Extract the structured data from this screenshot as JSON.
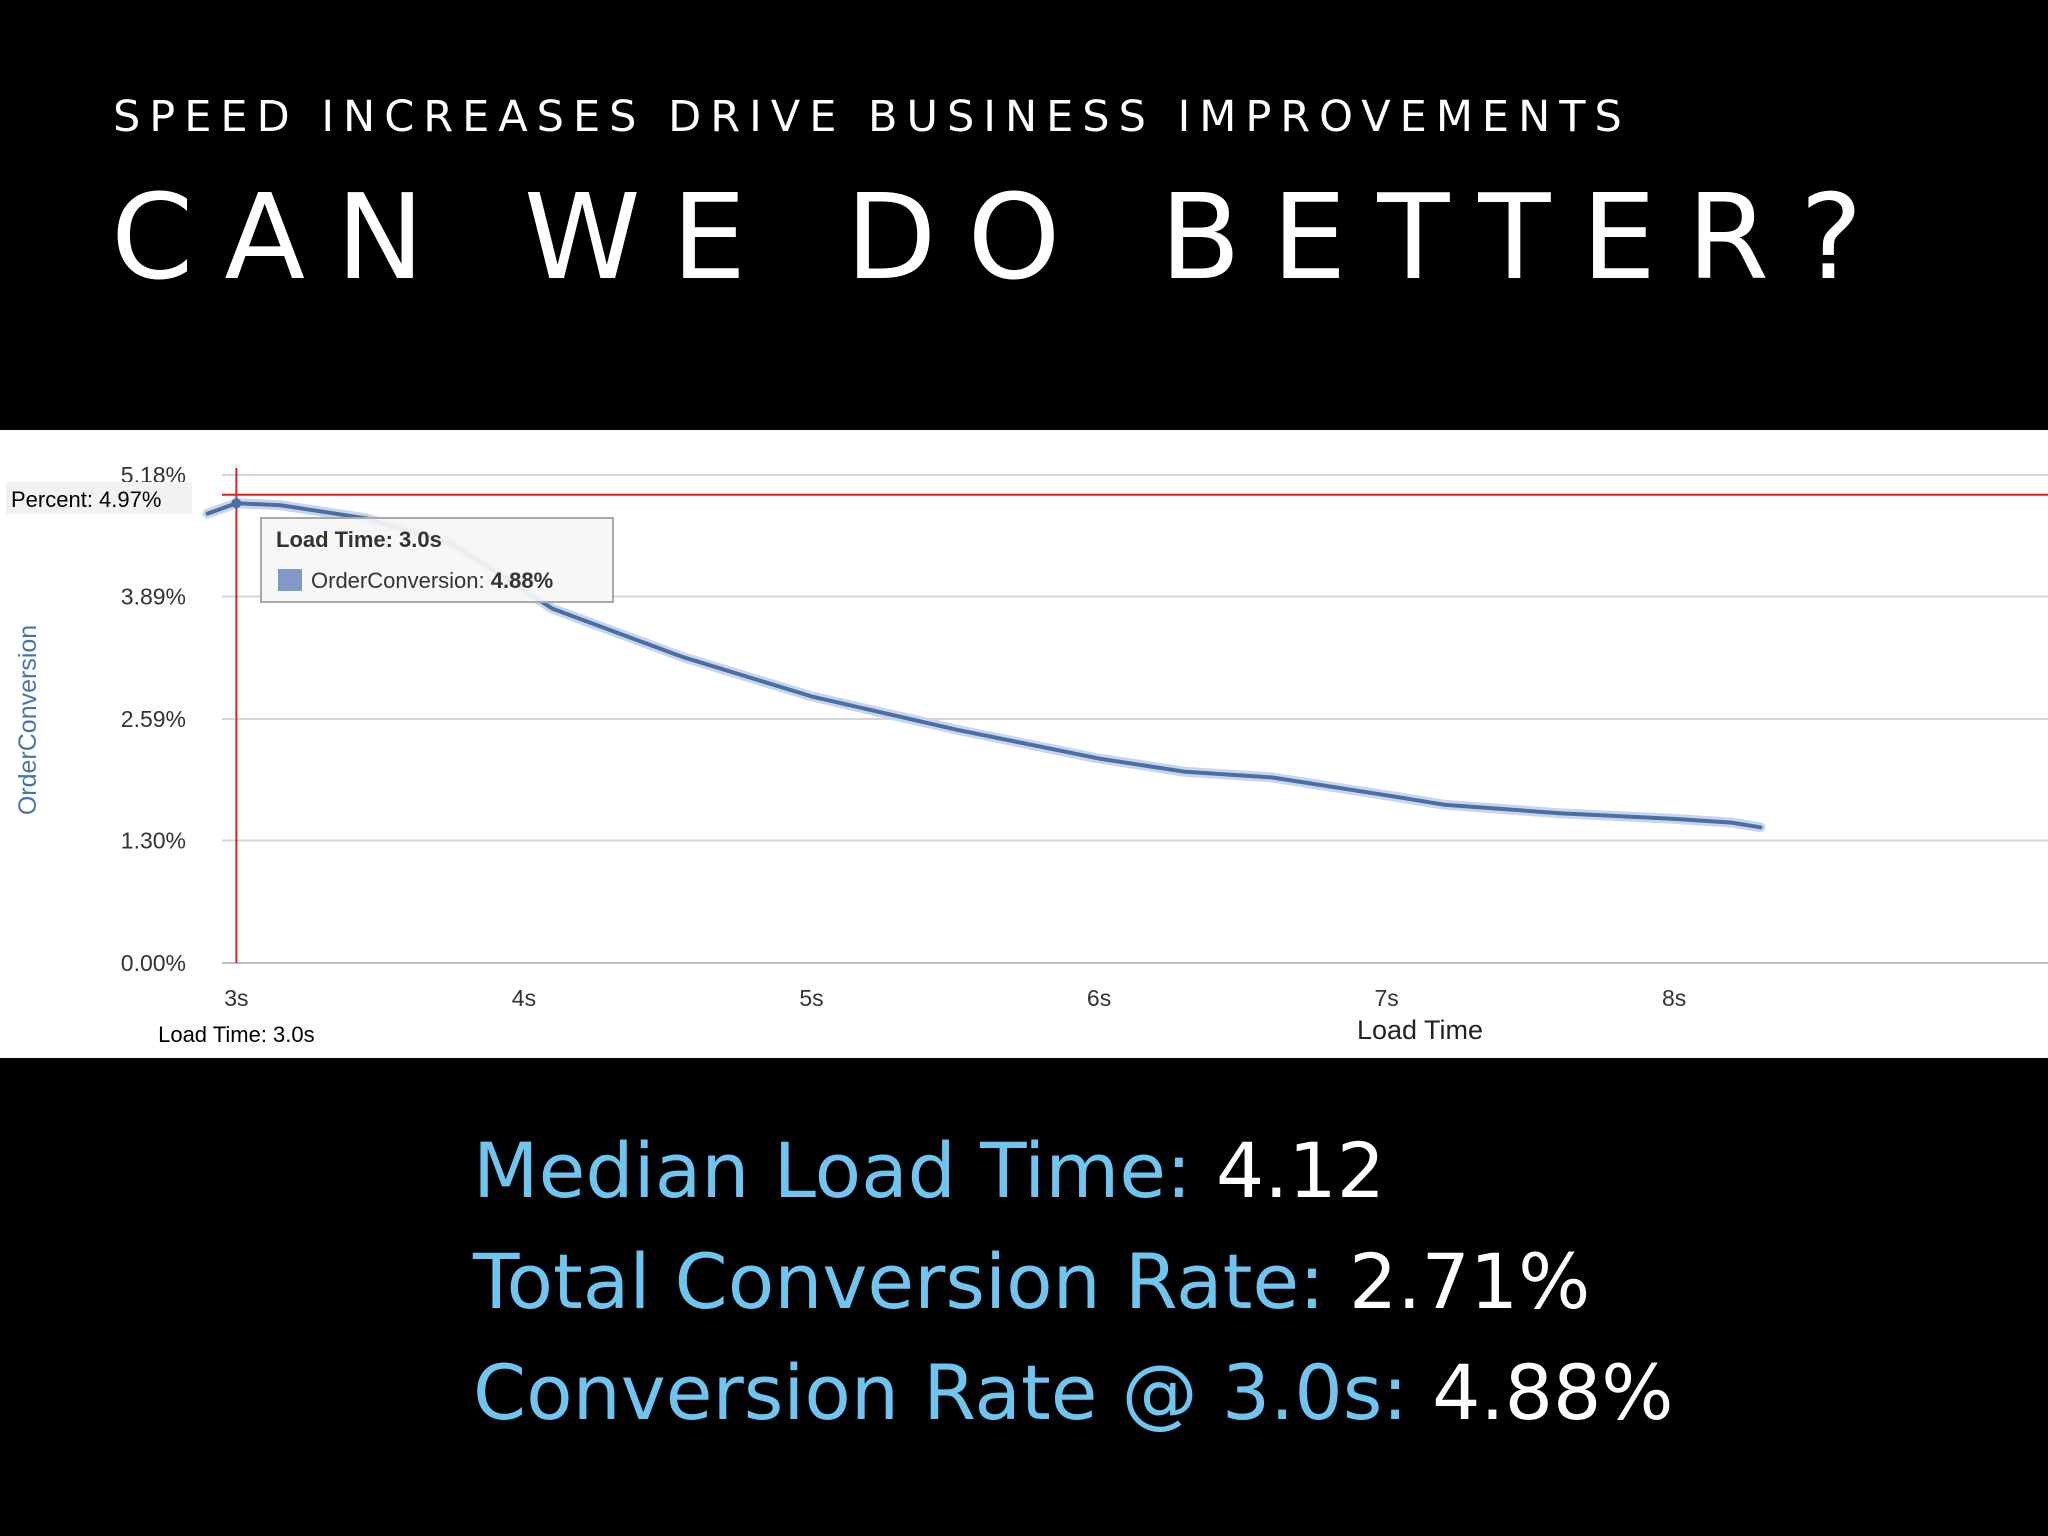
{
  "slide": {
    "subtitle": "SPEED INCREASES DRIVE BUSINESS IMPROVEMENTS",
    "title": "CAN WE DO BETTER?"
  },
  "colors": {
    "background": "#000000",
    "label_accent": "#6ec6f0",
    "series_line": "#4a6ea8",
    "crosshair": "#e02020"
  },
  "chart_data": {
    "type": "line",
    "xlabel": "Load Time",
    "ylabel": "OrderConversion",
    "xlim": [
      2.95,
      9.3
    ],
    "ylim": [
      0.0,
      5.18
    ],
    "y_ticks": [
      "0.00%",
      "1.30%",
      "2.59%",
      "3.89%",
      "5.18%"
    ],
    "x_ticks": [
      "3s",
      "4s",
      "5s",
      "6s",
      "7s",
      "8s"
    ],
    "grid": true,
    "series": [
      {
        "name": "OrderConversion",
        "x": [
          2.9,
          3.0,
          3.15,
          3.45,
          3.75,
          4.1,
          4.55,
          5.0,
          5.5,
          6.0,
          6.3,
          6.6,
          7.0,
          7.2,
          7.6,
          8.0,
          8.2,
          8.3
        ],
        "y": [
          4.77,
          4.88,
          4.86,
          4.72,
          4.45,
          3.76,
          3.25,
          2.83,
          2.48,
          2.17,
          2.03,
          1.97,
          1.78,
          1.68,
          1.59,
          1.53,
          1.49,
          1.44
        ]
      }
    ],
    "crosshair": {
      "percent_label": "Percent:",
      "percent_value": "4.97%",
      "load_time_label": "Load Time: 3.0s"
    },
    "tooltip": {
      "header": "Load Time: 3.0s",
      "series_label": "OrderConversion:",
      "series_value": "4.88%"
    }
  },
  "stats": [
    {
      "label": "Median Load Time:",
      "value": "4.12"
    },
    {
      "label": "Total Conversion Rate:",
      "value": "2.71%"
    },
    {
      "label": "Conversion Rate @ 3.0s:",
      "value": "4.88%"
    }
  ]
}
